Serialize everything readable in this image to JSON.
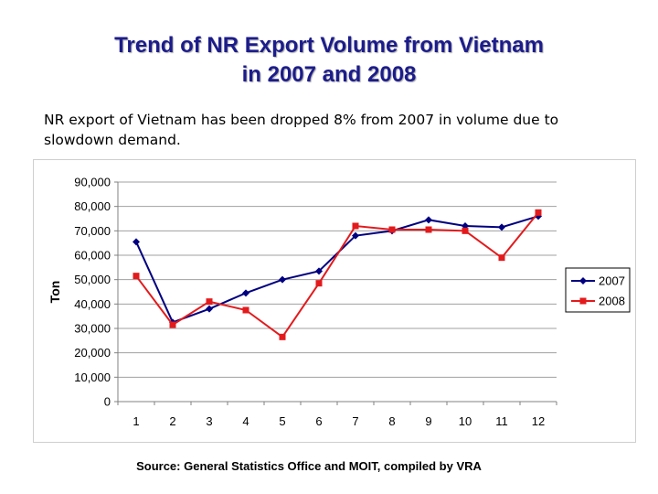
{
  "slide": {
    "title_line1": "Trend of NR Export Volume from Vietnam",
    "title_line2": "in 2007 and 2008",
    "subtitle_line1": "NR export of Vietnam has been dropped 8% from 2007 in volume due to",
    "subtitle_line2": "slowdown demand.",
    "source": "Source: General Statistics Office and MOIT, compiled by VRA"
  },
  "chart_data": {
    "type": "line",
    "title": "",
    "xlabel": "",
    "ylabel": "Ton",
    "categories": [
      "1",
      "2",
      "3",
      "4",
      "5",
      "6",
      "7",
      "8",
      "9",
      "10",
      "11",
      "12"
    ],
    "ylim": [
      0,
      90000
    ],
    "yticks": [
      "0",
      "10,000",
      "20,000",
      "30,000",
      "40,000",
      "50,000",
      "60,000",
      "70,000",
      "80,000",
      "90,000"
    ],
    "grid": "horizontal",
    "legend_position": "right",
    "series": [
      {
        "name": "2007",
        "color": "#000080",
        "marker": "diamond",
        "values": [
          65500,
          32500,
          38000,
          44500,
          50000,
          53500,
          68000,
          70000,
          74500,
          72000,
          71500,
          76000
        ]
      },
      {
        "name": "2008",
        "color": "#e31a1c",
        "marker": "square",
        "values": [
          51500,
          31500,
          41000,
          37500,
          26500,
          48500,
          72000,
          70500,
          70500,
          70000,
          59000,
          77500
        ]
      }
    ]
  }
}
